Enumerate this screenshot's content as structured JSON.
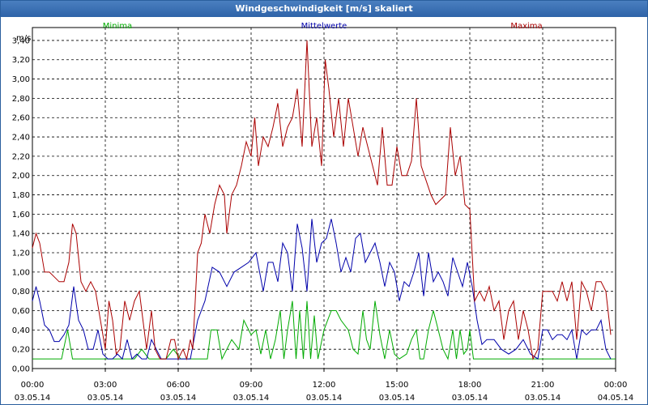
{
  "window": {
    "title": "Windgeschwindigkeit [m/s] skaliert"
  },
  "chart_data": {
    "type": "line",
    "title": "Windgeschwindigkeit [m/s] skaliert",
    "ylabel": "m/s",
    "xlabel": "",
    "ylim": [
      0,
      3.5
    ],
    "xlim_hours": [
      0,
      24
    ],
    "grid": true,
    "legend_placement": "top",
    "y_ticks": [
      "0,00",
      "0,20",
      "0,40",
      "0,60",
      "0,80",
      "1,00",
      "1,20",
      "1,40",
      "1,60",
      "1,80",
      "2,00",
      "2,20",
      "2,40",
      "2,60",
      "2,80",
      "3,00",
      "3,20",
      "3,40"
    ],
    "x_ticks": [
      {
        "time": "00:00",
        "date": "03.05.14"
      },
      {
        "time": "03:00",
        "date": "03.05.14"
      },
      {
        "time": "06:00",
        "date": "03.05.14"
      },
      {
        "time": "09:00",
        "date": "03.05.14"
      },
      {
        "time": "12:00",
        "date": "03.05.14"
      },
      {
        "time": "15:00",
        "date": "03.05.14"
      },
      {
        "time": "18:00",
        "date": "03.05.14"
      },
      {
        "time": "21:00",
        "date": "03.05.14"
      },
      {
        "time": "00:00",
        "date": "04.05.14"
      }
    ],
    "series": [
      {
        "name": "Minima",
        "color": "#00aa00",
        "points": [
          [
            0,
            0.1
          ],
          [
            1.2,
            0.1
          ],
          [
            1.45,
            0.4
          ],
          [
            1.65,
            0.1
          ],
          [
            4.2,
            0.1
          ],
          [
            4.5,
            0.2
          ],
          [
            4.8,
            0.1
          ],
          [
            5.5,
            0.1
          ],
          [
            5.8,
            0.2
          ],
          [
            6.1,
            0.1
          ],
          [
            7.2,
            0.1
          ],
          [
            7.35,
            0.4
          ],
          [
            7.6,
            0.4
          ],
          [
            7.8,
            0.1
          ],
          [
            8.2,
            0.3
          ],
          [
            8.5,
            0.2
          ],
          [
            8.7,
            0.5
          ],
          [
            9.0,
            0.35
          ],
          [
            9.2,
            0.4
          ],
          [
            9.4,
            0.15
          ],
          [
            9.6,
            0.4
          ],
          [
            9.8,
            0.1
          ],
          [
            10.0,
            0.3
          ],
          [
            10.2,
            0.6
          ],
          [
            10.35,
            0.1
          ],
          [
            10.5,
            0.4
          ],
          [
            10.7,
            0.7
          ],
          [
            10.85,
            0.1
          ],
          [
            11.0,
            0.6
          ],
          [
            11.15,
            0.1
          ],
          [
            11.3,
            0.7
          ],
          [
            11.45,
            0.1
          ],
          [
            11.6,
            0.55
          ],
          [
            11.75,
            0.1
          ],
          [
            12.0,
            0.4
          ],
          [
            12.3,
            0.6
          ],
          [
            12.5,
            0.6
          ],
          [
            12.7,
            0.5
          ],
          [
            13.0,
            0.4
          ],
          [
            13.2,
            0.2
          ],
          [
            13.4,
            0.15
          ],
          [
            13.6,
            0.6
          ],
          [
            13.75,
            0.3
          ],
          [
            13.9,
            0.2
          ],
          [
            14.1,
            0.7
          ],
          [
            14.3,
            0.35
          ],
          [
            14.5,
            0.1
          ],
          [
            14.7,
            0.4
          ],
          [
            14.9,
            0.15
          ],
          [
            15.1,
            0.1
          ],
          [
            15.4,
            0.15
          ],
          [
            15.6,
            0.3
          ],
          [
            15.8,
            0.4
          ],
          [
            15.95,
            0.1
          ],
          [
            16.1,
            0.1
          ],
          [
            16.3,
            0.4
          ],
          [
            16.5,
            0.6
          ],
          [
            16.7,
            0.4
          ],
          [
            16.9,
            0.2
          ],
          [
            17.1,
            0.1
          ],
          [
            17.3,
            0.4
          ],
          [
            17.45,
            0.1
          ],
          [
            17.6,
            0.4
          ],
          [
            17.75,
            0.15
          ],
          [
            17.9,
            0.2
          ],
          [
            18.0,
            0.4
          ],
          [
            18.15,
            0.1
          ],
          [
            24,
            0.1
          ]
        ]
      },
      {
        "name": "Mittelwerte",
        "color": "#0000aa",
        "points": [
          [
            0,
            0.7
          ],
          [
            0.15,
            0.85
          ],
          [
            0.3,
            0.7
          ],
          [
            0.5,
            0.45
          ],
          [
            0.7,
            0.4
          ],
          [
            0.9,
            0.28
          ],
          [
            1.1,
            0.28
          ],
          [
            1.3,
            0.35
          ],
          [
            1.5,
            0.45
          ],
          [
            1.7,
            0.85
          ],
          [
            1.9,
            0.5
          ],
          [
            2.1,
            0.4
          ],
          [
            2.3,
            0.2
          ],
          [
            2.5,
            0.2
          ],
          [
            2.7,
            0.4
          ],
          [
            2.9,
            0.15
          ],
          [
            3.1,
            0.1
          ],
          [
            3.3,
            0.1
          ],
          [
            3.5,
            0.15
          ],
          [
            3.7,
            0.1
          ],
          [
            3.9,
            0.3
          ],
          [
            4.1,
            0.1
          ],
          [
            4.3,
            0.15
          ],
          [
            4.5,
            0.1
          ],
          [
            4.7,
            0.1
          ],
          [
            4.9,
            0.3
          ],
          [
            5.1,
            0.2
          ],
          [
            5.3,
            0.1
          ],
          [
            5.6,
            0.1
          ],
          [
            5.9,
            0.1
          ],
          [
            6.2,
            0.1
          ],
          [
            6.5,
            0.1
          ],
          [
            6.8,
            0.5
          ],
          [
            7.1,
            0.7
          ],
          [
            7.4,
            1.05
          ],
          [
            7.7,
            1.0
          ],
          [
            8.0,
            0.85
          ],
          [
            8.3,
            1.0
          ],
          [
            8.6,
            1.05
          ],
          [
            8.9,
            1.1
          ],
          [
            9.2,
            1.2
          ],
          [
            9.5,
            0.8
          ],
          [
            9.7,
            1.1
          ],
          [
            9.9,
            1.1
          ],
          [
            10.1,
            0.9
          ],
          [
            10.3,
            1.3
          ],
          [
            10.5,
            1.2
          ],
          [
            10.7,
            0.8
          ],
          [
            10.9,
            1.5
          ],
          [
            11.1,
            1.25
          ],
          [
            11.3,
            0.8
          ],
          [
            11.5,
            1.55
          ],
          [
            11.7,
            1.1
          ],
          [
            11.9,
            1.3
          ],
          [
            12.1,
            1.35
          ],
          [
            12.3,
            1.55
          ],
          [
            12.5,
            1.3
          ],
          [
            12.7,
            1.0
          ],
          [
            12.9,
            1.15
          ],
          [
            13.1,
            1.0
          ],
          [
            13.3,
            1.35
          ],
          [
            13.5,
            1.4
          ],
          [
            13.7,
            1.1
          ],
          [
            13.9,
            1.2
          ],
          [
            14.1,
            1.3
          ],
          [
            14.3,
            1.1
          ],
          [
            14.5,
            0.85
          ],
          [
            14.7,
            1.1
          ],
          [
            14.9,
            1.0
          ],
          [
            15.1,
            0.7
          ],
          [
            15.3,
            0.9
          ],
          [
            15.5,
            0.85
          ],
          [
            15.7,
            1.0
          ],
          [
            15.9,
            1.2
          ],
          [
            16.1,
            0.75
          ],
          [
            16.3,
            1.2
          ],
          [
            16.5,
            0.9
          ],
          [
            16.7,
            1.0
          ],
          [
            16.9,
            0.9
          ],
          [
            17.1,
            0.75
          ],
          [
            17.3,
            1.15
          ],
          [
            17.5,
            1.0
          ],
          [
            17.7,
            0.85
          ],
          [
            17.9,
            1.1
          ],
          [
            18.1,
            0.85
          ],
          [
            18.3,
            0.5
          ],
          [
            18.5,
            0.25
          ],
          [
            18.7,
            0.3
          ],
          [
            19.0,
            0.3
          ],
          [
            19.3,
            0.2
          ],
          [
            19.6,
            0.15
          ],
          [
            19.9,
            0.2
          ],
          [
            20.2,
            0.3
          ],
          [
            20.5,
            0.15
          ],
          [
            20.8,
            0.1
          ],
          [
            21.0,
            0.4
          ],
          [
            21.2,
            0.4
          ],
          [
            21.4,
            0.3
          ],
          [
            21.6,
            0.35
          ],
          [
            21.8,
            0.35
          ],
          [
            22.0,
            0.3
          ],
          [
            22.2,
            0.4
          ],
          [
            22.4,
            0.1
          ],
          [
            22.6,
            0.4
          ],
          [
            22.8,
            0.35
          ],
          [
            23.0,
            0.4
          ],
          [
            23.2,
            0.4
          ],
          [
            23.4,
            0.5
          ],
          [
            23.6,
            0.2
          ],
          [
            23.8,
            0.1
          ]
        ]
      },
      {
        "name": "Maxima",
        "color": "#aa0000",
        "points": [
          [
            0,
            1.25
          ],
          [
            0.15,
            1.4
          ],
          [
            0.3,
            1.3
          ],
          [
            0.5,
            1.0
          ],
          [
            0.7,
            1.0
          ],
          [
            0.9,
            0.95
          ],
          [
            1.1,
            0.9
          ],
          [
            1.3,
            0.9
          ],
          [
            1.5,
            1.1
          ],
          [
            1.65,
            1.5
          ],
          [
            1.8,
            1.4
          ],
          [
            2.0,
            0.9
          ],
          [
            2.2,
            0.8
          ],
          [
            2.4,
            0.9
          ],
          [
            2.6,
            0.8
          ],
          [
            2.8,
            0.5
          ],
          [
            3.0,
            0.2
          ],
          [
            3.15,
            0.7
          ],
          [
            3.3,
            0.5
          ],
          [
            3.45,
            0.15
          ],
          [
            3.6,
            0.2
          ],
          [
            3.8,
            0.7
          ],
          [
            4.0,
            0.5
          ],
          [
            4.2,
            0.7
          ],
          [
            4.4,
            0.8
          ],
          [
            4.55,
            0.5
          ],
          [
            4.7,
            0.2
          ],
          [
            4.9,
            0.6
          ],
          [
            5.05,
            0.2
          ],
          [
            5.25,
            0.1
          ],
          [
            5.5,
            0.1
          ],
          [
            5.7,
            0.3
          ],
          [
            5.85,
            0.3
          ],
          [
            6.0,
            0.1
          ],
          [
            6.2,
            0.2
          ],
          [
            6.35,
            0.1
          ],
          [
            6.5,
            0.3
          ],
          [
            6.6,
            0.2
          ],
          [
            6.8,
            1.2
          ],
          [
            6.95,
            1.3
          ],
          [
            7.1,
            1.6
          ],
          [
            7.3,
            1.4
          ],
          [
            7.5,
            1.7
          ],
          [
            7.7,
            1.9
          ],
          [
            7.9,
            1.8
          ],
          [
            8.0,
            1.4
          ],
          [
            8.2,
            1.8
          ],
          [
            8.4,
            1.9
          ],
          [
            8.6,
            2.1
          ],
          [
            8.8,
            2.35
          ],
          [
            9.0,
            2.2
          ],
          [
            9.15,
            2.6
          ],
          [
            9.3,
            2.1
          ],
          [
            9.5,
            2.4
          ],
          [
            9.7,
            2.3
          ],
          [
            9.9,
            2.5
          ],
          [
            10.1,
            2.75
          ],
          [
            10.3,
            2.3
          ],
          [
            10.5,
            2.5
          ],
          [
            10.7,
            2.6
          ],
          [
            10.9,
            2.9
          ],
          [
            11.1,
            2.3
          ],
          [
            11.3,
            3.4
          ],
          [
            11.5,
            2.3
          ],
          [
            11.7,
            2.6
          ],
          [
            11.9,
            2.1
          ],
          [
            12.05,
            3.2
          ],
          [
            12.2,
            2.9
          ],
          [
            12.4,
            2.4
          ],
          [
            12.6,
            2.8
          ],
          [
            12.8,
            2.3
          ],
          [
            13.0,
            2.8
          ],
          [
            13.2,
            2.5
          ],
          [
            13.4,
            2.2
          ],
          [
            13.6,
            2.5
          ],
          [
            13.8,
            2.3
          ],
          [
            14.0,
            2.1
          ],
          [
            14.2,
            1.9
          ],
          [
            14.4,
            2.5
          ],
          [
            14.6,
            1.9
          ],
          [
            14.8,
            1.9
          ],
          [
            15.0,
            2.3
          ],
          [
            15.2,
            2.0
          ],
          [
            15.4,
            2.0
          ],
          [
            15.6,
            2.15
          ],
          [
            15.8,
            2.8
          ],
          [
            16.0,
            2.1
          ],
          [
            16.2,
            1.95
          ],
          [
            16.4,
            1.8
          ],
          [
            16.6,
            1.7
          ],
          [
            16.8,
            1.75
          ],
          [
            17.0,
            1.8
          ],
          [
            17.2,
            2.5
          ],
          [
            17.4,
            2.0
          ],
          [
            17.6,
            2.2
          ],
          [
            17.8,
            1.7
          ],
          [
            18.0,
            1.65
          ],
          [
            18.2,
            0.7
          ],
          [
            18.4,
            0.8
          ],
          [
            18.6,
            0.7
          ],
          [
            18.8,
            0.85
          ],
          [
            19.0,
            0.6
          ],
          [
            19.2,
            0.7
          ],
          [
            19.4,
            0.3
          ],
          [
            19.6,
            0.6
          ],
          [
            19.8,
            0.7
          ],
          [
            20.0,
            0.3
          ],
          [
            20.2,
            0.6
          ],
          [
            20.4,
            0.4
          ],
          [
            20.6,
            0.1
          ],
          [
            20.8,
            0.2
          ],
          [
            21.0,
            0.8
          ],
          [
            21.2,
            0.8
          ],
          [
            21.4,
            0.8
          ],
          [
            21.6,
            0.7
          ],
          [
            21.8,
            0.9
          ],
          [
            22.0,
            0.7
          ],
          [
            22.2,
            0.9
          ],
          [
            22.4,
            0.3
          ],
          [
            22.6,
            0.9
          ],
          [
            22.8,
            0.8
          ],
          [
            23.0,
            0.6
          ],
          [
            23.2,
            0.9
          ],
          [
            23.4,
            0.9
          ],
          [
            23.6,
            0.8
          ],
          [
            23.8,
            0.35
          ]
        ]
      }
    ]
  }
}
